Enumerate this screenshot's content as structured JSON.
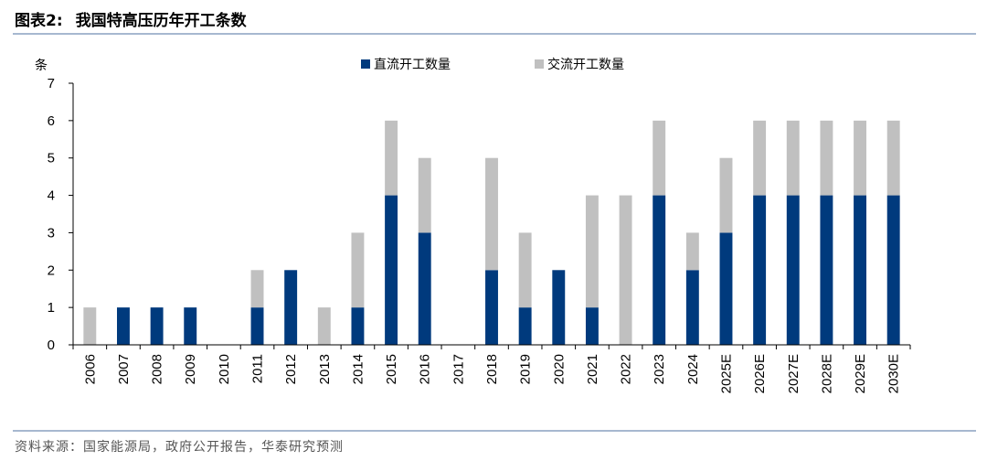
{
  "header": {
    "figure_label": "图表2:",
    "title": "我国特高压历年开工条数"
  },
  "source": "资料来源：国家能源局，政府公开报告，华泰研究预测",
  "colors": {
    "dc": "#003A7D",
    "ac": "#C0C0C0",
    "rule": "#A7B8D0"
  },
  "chart_data": {
    "type": "bar",
    "stacked": true,
    "title": "我国特高压历年开工条数",
    "ylabel": "条",
    "xlabel": "",
    "ylim": [
      0,
      7
    ],
    "yticks": [
      0,
      1,
      2,
      3,
      4,
      5,
      6,
      7
    ],
    "grid": false,
    "legend_position": "top",
    "categories": [
      "2006",
      "2007",
      "2008",
      "2009",
      "2010",
      "2011",
      "2012",
      "2013",
      "2014",
      "2015",
      "2016",
      "2017",
      "2018",
      "2019",
      "2020",
      "2021",
      "2022",
      "2023",
      "2024",
      "2025E",
      "2026E",
      "2027E",
      "2028E",
      "2029E",
      "2030E"
    ],
    "series": [
      {
        "name": "直流开工数量",
        "color": "#003A7D",
        "values": [
          0,
          1,
          1,
          1,
          0,
          1,
          2,
          0,
          1,
          4,
          3,
          0,
          2,
          1,
          2,
          1,
          0,
          4,
          2,
          3,
          4,
          4,
          4,
          4,
          4
        ]
      },
      {
        "name": "交流开工数量",
        "color": "#C0C0C0",
        "values": [
          1,
          0,
          0,
          0,
          0,
          1,
          0,
          1,
          2,
          2,
          2,
          0,
          3,
          2,
          0,
          3,
          4,
          2,
          1,
          2,
          2,
          2,
          2,
          2,
          2
        ]
      }
    ]
  }
}
